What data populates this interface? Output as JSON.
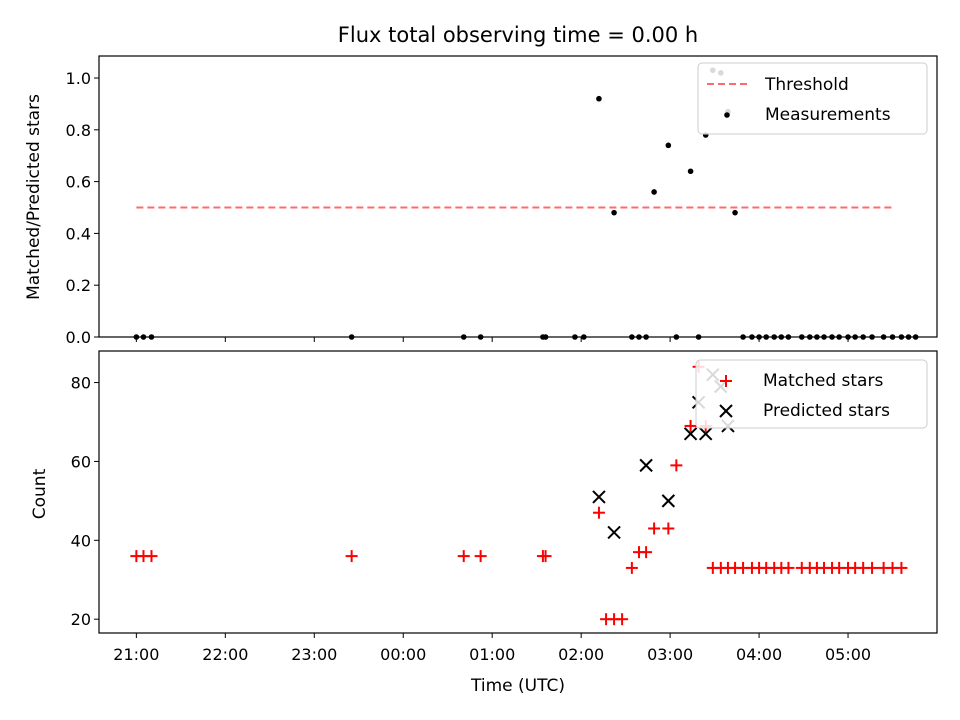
{
  "figure": {
    "title": "Flux total observing time = 0.00 h",
    "xlabel": "Time (UTC)"
  },
  "chart_data": [
    {
      "type": "scatter",
      "panel": "top",
      "title": "Flux total observing time = 0.00 h",
      "ylabel": "Matched/Predicted stars",
      "xlabel": "",
      "x_unit": "hours since 21:00 UTC",
      "xlim": [
        -0.42,
        9.0
      ],
      "ylim": [
        0.0,
        1.085
      ],
      "yticks": [
        0.0,
        0.2,
        0.4,
        0.6,
        0.8,
        1.0
      ],
      "ytick_labels": [
        "0.0",
        "0.2",
        "0.4",
        "0.6",
        "0.8",
        "1.0"
      ],
      "legend_position": "top-right",
      "threshold": {
        "name": "Threshold",
        "y": 0.5,
        "x_range": [
          0.0,
          8.5
        ],
        "color": "#ff6b6b",
        "style": "dashed"
      },
      "series": [
        {
          "name": "Measurements",
          "color": "#000000",
          "marker": "dot",
          "x": [
            0.0,
            0.08,
            0.17,
            2.42,
            3.68,
            3.87,
            4.57,
            4.6,
            4.93,
            5.03,
            5.2,
            5.37,
            5.57,
            5.65,
            5.73,
            5.82,
            5.98,
            6.07,
            6.23,
            6.32,
            6.4,
            6.48,
            6.57,
            6.65,
            6.73,
            6.82,
            6.92,
            7.0,
            7.08,
            7.17,
            7.25,
            7.33,
            7.48,
            7.57,
            7.65,
            7.73,
            7.82,
            7.9,
            8.0,
            8.08,
            8.17,
            8.27,
            8.4,
            8.5,
            8.6,
            8.68,
            8.76
          ],
          "y": [
            0.0,
            0.0,
            0.0,
            0.0,
            0.0,
            0.0,
            0.0,
            0.0,
            0.0,
            0.0,
            0.92,
            0.48,
            0.0,
            0.0,
            0.0,
            0.56,
            0.74,
            0.0,
            0.64,
            0.0,
            0.78,
            1.03,
            1.02,
            0.87,
            0.48,
            0.0,
            0.0,
            0.0,
            0.0,
            0.0,
            0.0,
            0.0,
            0.0,
            0.0,
            0.0,
            0.0,
            0.0,
            0.0,
            0.0,
            0.0,
            0.0,
            0.0,
            0.0,
            0.0,
            0.0,
            0.0,
            0.0
          ]
        }
      ]
    },
    {
      "type": "scatter",
      "panel": "bottom",
      "title": "",
      "ylabel": "Count",
      "xlabel": "Time (UTC)",
      "x_unit": "hours since 21:00 UTC",
      "xlim": [
        -0.42,
        9.0
      ],
      "ylim": [
        16.5,
        88.0
      ],
      "yticks": [
        20,
        40,
        60,
        80
      ],
      "ytick_labels": [
        "20",
        "40",
        "60",
        "80"
      ],
      "xticks": [
        0,
        1,
        2,
        3,
        4,
        5,
        6,
        7,
        8
      ],
      "xtick_labels": [
        "21:00",
        "22:00",
        "23:00",
        "00:00",
        "01:00",
        "02:00",
        "03:00",
        "04:00",
        "05:00"
      ],
      "legend_position": "top-right",
      "series": [
        {
          "name": "Matched stars",
          "color": "#ff0000",
          "marker": "plus",
          "x": [
            0.0,
            0.08,
            0.17,
            2.42,
            3.68,
            3.87,
            4.57,
            4.6,
            5.2,
            5.28,
            5.37,
            5.46,
            5.57,
            5.65,
            5.73,
            5.82,
            5.98,
            6.07,
            6.23,
            6.32,
            6.4,
            6.48,
            6.57,
            6.65,
            6.73,
            6.82,
            6.92,
            7.0,
            7.08,
            7.17,
            7.25,
            7.33,
            7.48,
            7.57,
            7.65,
            7.73,
            7.82,
            7.9,
            8.0,
            8.08,
            8.17,
            8.27,
            8.4,
            8.5,
            8.6
          ],
          "y": [
            36,
            36,
            36,
            36,
            36,
            36,
            36,
            36,
            47,
            20,
            20,
            20,
            33,
            37,
            37,
            43,
            43,
            59,
            69,
            84,
            69,
            33,
            33,
            33,
            33,
            33,
            33,
            33,
            33,
            33,
            33,
            33,
            33,
            33,
            33,
            33,
            33,
            33,
            33,
            33,
            33,
            33,
            33,
            33,
            33
          ]
        },
        {
          "name": "Predicted stars",
          "color": "#000000",
          "marker": "x",
          "x": [
            5.2,
            5.37,
            5.73,
            5.98,
            6.23,
            6.32,
            6.4,
            6.48,
            6.57,
            6.65
          ],
          "y": [
            51,
            42,
            59,
            50,
            67,
            75,
            67,
            82,
            79,
            69
          ]
        }
      ]
    }
  ]
}
